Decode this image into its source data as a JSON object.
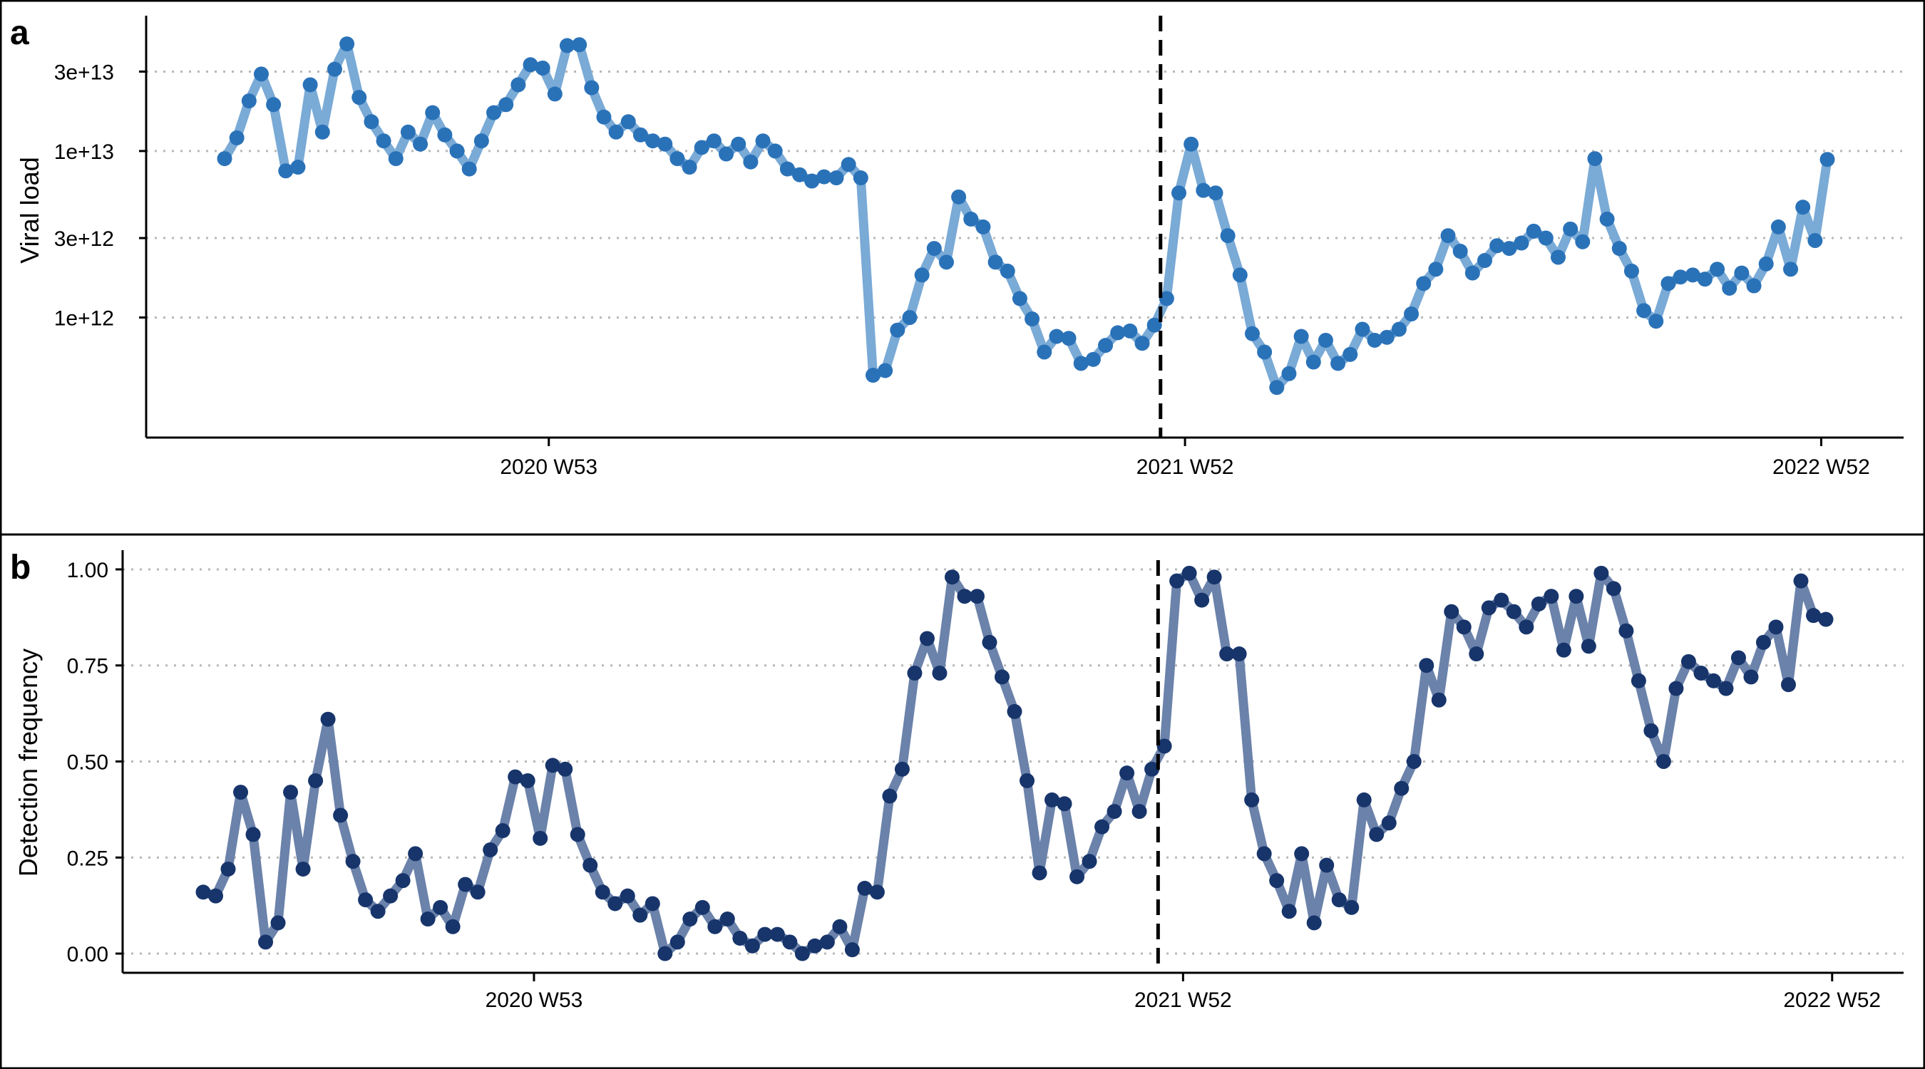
{
  "colors": {
    "panel_a_line": "#7aaad6",
    "panel_a_point": "#2a72b8",
    "panel_b_line": "#6b82aa",
    "panel_b_point": "#17356b",
    "gridline": "#b8b8b8",
    "axis": "#000000",
    "marker_line": "#000000"
  },
  "chart_data": [
    {
      "panel_label": "a",
      "type": "line",
      "scale": "log",
      "xlabel": "",
      "ylabel": "Viral load",
      "ylim": [
        190000000000.0,
        65000000000000.0
      ],
      "yticks": [
        1000000000000.0,
        3000000000000.0,
        10000000000000.0,
        30000000000000.0
      ],
      "ytick_labels": [
        "1e+12",
        "3e+12",
        "1e+13",
        "3e+13"
      ],
      "x_ticks": [
        {
          "index": 26.5,
          "label": "2020 W53"
        },
        {
          "index": 78.5,
          "label": "2021 W52"
        },
        {
          "index": 130.5,
          "label": "2022 W52"
        }
      ],
      "marker_index": 76.5,
      "markers": true,
      "grid": "horizontal dotted",
      "values": [
        9000000000000.0,
        12000000000000.0,
        20000000000000.0,
        29000000000000.0,
        19000000000000.0,
        7600000000000.0,
        8000000000000.0,
        25000000000000.0,
        13000000000000.0,
        31000000000000.0,
        44000000000000.0,
        21000000000000.0,
        15000000000000.0,
        11500000000000.0,
        9000000000000.0,
        13000000000000.0,
        11000000000000.0,
        17000000000000.0,
        12500000000000.0,
        10000000000000.0,
        7800000000000.0,
        11500000000000.0,
        17000000000000.0,
        19000000000000.0,
        25000000000000.0,
        33000000000000.0,
        31500000000000.0,
        22000000000000.0,
        43000000000000.0,
        43500000000000.0,
        24000000000000.0,
        16000000000000.0,
        13000000000000.0,
        15000000000000.0,
        12500000000000.0,
        11500000000000.0,
        11000000000000.0,
        9000000000000.0,
        8000000000000.0,
        10500000000000.0,
        11500000000000.0,
        9600000000000.0,
        11000000000000.0,
        8600000000000.0,
        11500000000000.0,
        10000000000000.0,
        7800000000000.0,
        7200000000000.0,
        6600000000000.0,
        7000000000000.0,
        6900000000000.0,
        8300000000000.0,
        6900000000000.0,
        450000000000.0,
        480000000000.0,
        840000000000.0,
        1000000000000.0,
        1800000000000.0,
        2600000000000.0,
        2150000000000.0,
        5300000000000.0,
        3900000000000.0,
        3500000000000.0,
        2150000000000.0,
        1900000000000.0,
        1300000000000.0,
        980000000000.0,
        620000000000.0,
        770000000000.0,
        750000000000.0,
        530000000000.0,
        560000000000.0,
        680000000000.0,
        810000000000.0,
        830000000000.0,
        700000000000.0,
        900000000000.0,
        1300000000000.0,
        5600000000000.0,
        11000000000000.0,
        5800000000000.0,
        5600000000000.0,
        3100000000000.0,
        1800000000000.0,
        800000000000.0,
        620000000000.0,
        380000000000.0,
        460000000000.0,
        770000000000.0,
        540000000000.0,
        730000000000.0,
        530000000000.0,
        600000000000.0,
        850000000000.0,
        730000000000.0,
        760000000000.0,
        850000000000.0,
        1050000000000.0,
        1600000000000.0,
        1950000000000.0,
        3100000000000.0,
        2500000000000.0,
        1850000000000.0,
        2200000000000.0,
        2700000000000.0,
        2600000000000.0,
        2800000000000.0,
        3300000000000.0,
        3000000000000.0,
        2300000000000.0,
        3400000000000.0,
        2850000000000.0,
        9000000000000.0,
        3900000000000.0,
        2600000000000.0,
        1900000000000.0,
        1100000000000.0,
        950000000000.0,
        1600000000000.0,
        1750000000000.0,
        1800000000000.0,
        1700000000000.0,
        1950000000000.0,
        1500000000000.0,
        1850000000000.0,
        1550000000000.0,
        2100000000000.0,
        3500000000000.0,
        1950000000000.0,
        4600000000000.0,
        2900000000000.0,
        8900000000000.0
      ]
    },
    {
      "panel_label": "b",
      "type": "line",
      "scale": "linear",
      "xlabel": "",
      "ylabel": "Detection frequency",
      "ylim": [
        -0.05,
        1.05
      ],
      "yticks": [
        0,
        0.25,
        0.5,
        0.75,
        1
      ],
      "ytick_labels": [
        "0.00",
        "0.25",
        "0.50",
        "0.75",
        "1.00"
      ],
      "x_ticks": [
        {
          "index": 26.5,
          "label": "2020 W53"
        },
        {
          "index": 78.5,
          "label": "2021 W52"
        },
        {
          "index": 130.5,
          "label": "2022 W52"
        }
      ],
      "marker_index": 76.5,
      "markers": true,
      "grid": "horizontal dotted",
      "values": [
        0.16,
        0.15,
        0.22,
        0.42,
        0.31,
        0.03,
        0.08,
        0.42,
        0.22,
        0.45,
        0.61,
        0.36,
        0.24,
        0.14,
        0.11,
        0.15,
        0.19,
        0.26,
        0.09,
        0.12,
        0.07,
        0.18,
        0.16,
        0.27,
        0.32,
        0.46,
        0.45,
        0.3,
        0.49,
        0.48,
        0.31,
        0.23,
        0.16,
        0.13,
        0.15,
        0.1,
        0.13,
        0.0,
        0.03,
        0.09,
        0.12,
        0.07,
        0.09,
        0.04,
        0.02,
        0.05,
        0.05,
        0.03,
        0.0,
        0.02,
        0.03,
        0.07,
        0.01,
        0.17,
        0.16,
        0.41,
        0.48,
        0.73,
        0.82,
        0.73,
        0.98,
        0.93,
        0.93,
        0.81,
        0.72,
        0.63,
        0.45,
        0.21,
        0.4,
        0.39,
        0.2,
        0.24,
        0.33,
        0.37,
        0.47,
        0.37,
        0.48,
        0.54,
        0.97,
        0.99,
        0.92,
        0.98,
        0.78,
        0.78,
        0.4,
        0.26,
        0.19,
        0.11,
        0.26,
        0.08,
        0.23,
        0.14,
        0.12,
        0.4,
        0.31,
        0.34,
        0.43,
        0.5,
        0.75,
        0.66,
        0.89,
        0.85,
        0.78,
        0.9,
        0.92,
        0.89,
        0.85,
        0.91,
        0.93,
        0.79,
        0.93,
        0.8,
        0.99,
        0.95,
        0.84,
        0.71,
        0.58,
        0.5,
        0.69,
        0.76,
        0.73,
        0.71,
        0.69,
        0.77,
        0.72,
        0.81,
        0.85,
        0.7,
        0.97,
        0.88,
        0.87
      ]
    }
  ]
}
